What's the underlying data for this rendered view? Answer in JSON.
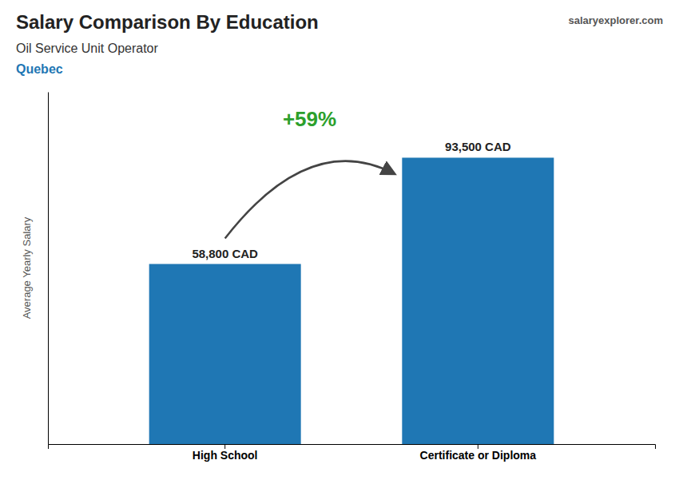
{
  "chart_data": {
    "type": "bar",
    "title": "Salary Comparison By Education",
    "subtitle": "Oil Service Unit Operator",
    "annotations": [
      "Quebec",
      "+59%",
      "salaryexplorer.com"
    ],
    "y_label": "Average Yearly Salary",
    "categories": [
      "High School",
      "Certificate or Diploma"
    ],
    "values": [
      58800,
      93500
    ],
    "value_labels": [
      "58,800 CAD",
      "93,500 CAD"
    ],
    "data_labels": true,
    "ylim": [
      0,
      115000
    ],
    "tick_labels": "x",
    "grid": false
  }
}
